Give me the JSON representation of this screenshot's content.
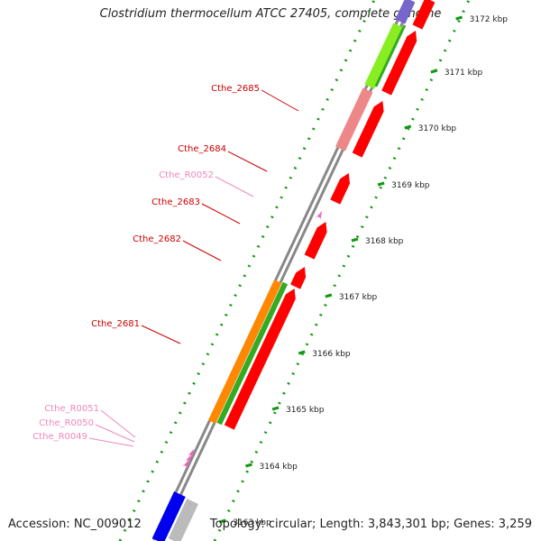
{
  "title": "Clostridium thermocellum ATCC 27405, complete genome",
  "accession": "Accession: NC_009012",
  "topology": "Topology: circular; Length: 3,843,301 bp; Genes: 3,259",
  "colors": {
    "gene_label": "#cc0000",
    "rna_label": "#ee88bb",
    "cds_forward": "#ff0000",
    "cds_reverse_light": "#ee8888",
    "rna": "#ee66bb",
    "cog_orange": "#ff8800",
    "cog_green": "#33aa22",
    "cog_lightgreen": "#88ee22",
    "cog_purple": "#7766cc",
    "cog_blue": "#0000ee",
    "backbone": "#888888",
    "tick": "#119911"
  },
  "scale": {
    "unit": "kbp",
    "ticks": [
      {
        "label": "3163 kbp",
        "kbp": 3163
      },
      {
        "label": "3164 kbp",
        "kbp": 3164
      },
      {
        "label": "3165 kbp",
        "kbp": 3165
      },
      {
        "label": "3166 kbp",
        "kbp": 3166
      },
      {
        "label": "3167 kbp",
        "kbp": 3167
      },
      {
        "label": "3168 kbp",
        "kbp": 3168
      },
      {
        "label": "3169 kbp",
        "kbp": 3169
      },
      {
        "label": "3170 kbp",
        "kbp": 3170
      },
      {
        "label": "3171 kbp",
        "kbp": 3171
      },
      {
        "label": "3172 kbp",
        "kbp": 3172
      }
    ]
  },
  "gene_labels": [
    {
      "text": "Cthe_2685",
      "kind": "gene"
    },
    {
      "text": "Cthe_2684",
      "kind": "gene"
    },
    {
      "text": "Cthe_R0052",
      "kind": "rna"
    },
    {
      "text": "Cthe_2683",
      "kind": "gene"
    },
    {
      "text": "Cthe_2682",
      "kind": "gene"
    },
    {
      "text": "Cthe_2681",
      "kind": "gene"
    },
    {
      "text": "Cthe_R0051",
      "kind": "rna"
    },
    {
      "text": "Cthe_R0050",
      "kind": "rna"
    },
    {
      "text": "Cthe_R0049",
      "kind": "rna"
    }
  ]
}
